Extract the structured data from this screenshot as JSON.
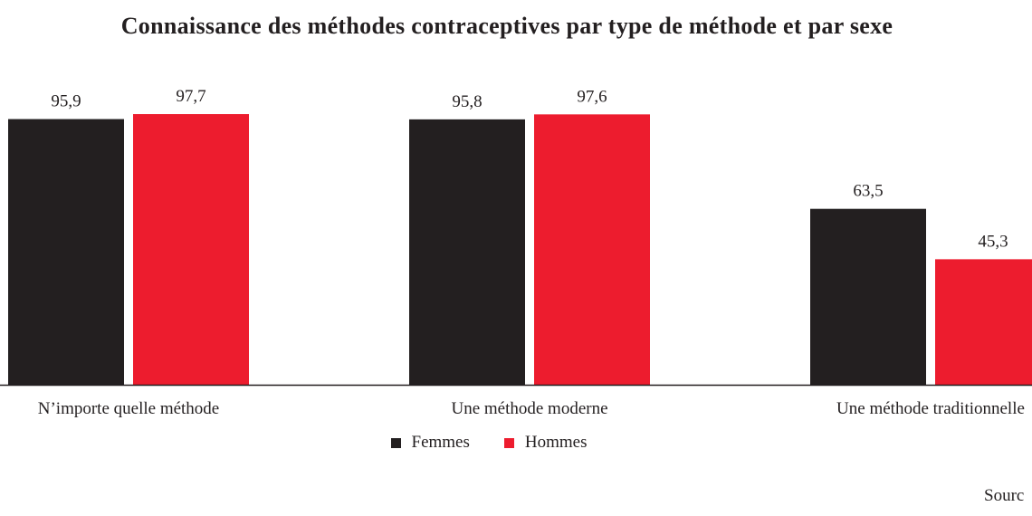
{
  "colors": {
    "Femmes": "#231f20",
    "Hommes": "#ed1c2e",
    "axis": "#231f20"
  },
  "chart_data": {
    "type": "bar",
    "title": "Connaissance des méthodes contraceptives par type de méthode et par sexe",
    "categories": [
      "N’importe quelle méthode",
      "Une méthode moderne",
      "Une méthode traditionnelle"
    ],
    "series": [
      {
        "name": "Femmes",
        "values": [
          95.9,
          95.8,
          63.5
        ],
        "labels": [
          "95,9",
          "95,8",
          "63,5"
        ]
      },
      {
        "name": "Hommes",
        "values": [
          97.7,
          97.6,
          45.3
        ],
        "labels": [
          "97,7",
          "97,6",
          "45,3"
        ]
      }
    ],
    "xlabel": "",
    "ylabel": "",
    "ylim": [
      0,
      100
    ],
    "grid": false,
    "legend_position": "bottom"
  },
  "source_label": "Sourc"
}
